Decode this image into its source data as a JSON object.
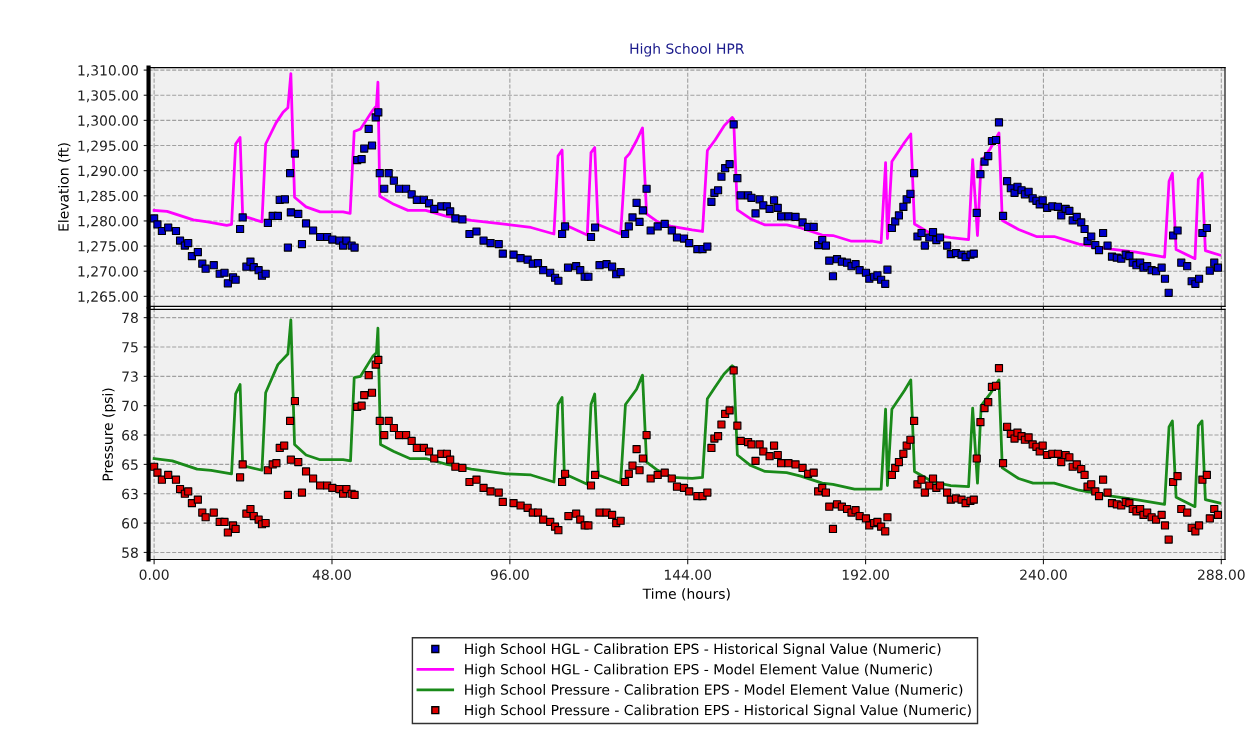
{
  "chart_data": [
    {
      "type": "scatter",
      "title": "High School HPR",
      "ylabel": "Elevation (ft)",
      "xlim": [
        -1.5,
        289
      ],
      "ylim": [
        1263,
        1310.5
      ],
      "tick_labels": "y",
      "grid": true,
      "legend": "bottom",
      "xticks": [
        0,
        48,
        96,
        144,
        192,
        240,
        288
      ],
      "yticks": [
        {
          "value": 1265,
          "label": "1,265.00"
        },
        {
          "value": 1270,
          "label": "1,270.00"
        },
        {
          "value": 1275,
          "label": "1,275.00"
        },
        {
          "value": 1280,
          "label": "1,280.00"
        },
        {
          "value": 1285,
          "label": "1,285.00"
        },
        {
          "value": 1290,
          "label": "1,290.00"
        },
        {
          "value": 1295,
          "label": "1,295.00"
        },
        {
          "value": 1300,
          "label": "1,300.00"
        },
        {
          "value": 1305,
          "label": "1,305.00"
        },
        {
          "value": 1310,
          "label": "1,310.00"
        }
      ],
      "series": [
        {
          "marker": "square",
          "name": "High School HGL - Calibration EPS - Historical Signal Value (Numeric)",
          "color": "#0000cc",
          "x": [
            0,
            0.9,
            2.1,
            3.8,
            5.9,
            7.0,
            8.3,
            9.2,
            10.2,
            11.8,
            13.0,
            13.9,
            16.1,
            17.7,
            19.0,
            19.9,
            21.3,
            22.0,
            23.2,
            23.9,
            24.9,
            26.0,
            26.9,
            28.2,
            29.1,
            30.1,
            30.7,
            32.0,
            33.4,
            33.9,
            35.3,
            36.1,
            36.7,
            36.9,
            38.0,
            38.9,
            39.9,
            41.0,
            42.9,
            44.8,
            46.7,
            48.1,
            50.0,
            51.0,
            51.9,
            53.3,
            54.1,
            54.8,
            56.0,
            56.7,
            57.9,
            58.8,
            59.8,
            60.5,
            60.9,
            62.1,
            63.3,
            64.7,
            66.1,
            68.0,
            69.5,
            70.9,
            72.8,
            74.2,
            75.6,
            77.5,
            79.0,
            79.9,
            81.3,
            83.2,
            85.1,
            87.0,
            88.9,
            90.8,
            93.0,
            94.1,
            97.0,
            98.9,
            100.8,
            102.2,
            103.6,
            105.0,
            106.9,
            108.2,
            109.1,
            110.1,
            110.9,
            111.7,
            113.9,
            115.0,
            116.2,
            117.2,
            117.9,
            119.0,
            120.2,
            122.1,
            123.6,
            124.7,
            125.9,
            127.1,
            128.1,
            129.1,
            130.2,
            131.0,
            131.9,
            132.9,
            134.0,
            135.9,
            137.8,
            139.7,
            141.1,
            143.0,
            144.4,
            146.6,
            148.0,
            149.3,
            150.4,
            151.2,
            152.2,
            153.1,
            154.1,
            155.3,
            156.4,
            157.4,
            158.3,
            160.3,
            161.2,
            162.3,
            163.4,
            164.4,
            166.1,
            167.3,
            168.3,
            169.2,
            171.2,
            173.1,
            175.0,
            176.5,
            178.0,
            179.2,
            180.3,
            181.3,
            182.2,
            183.2,
            184.3,
            185.6,
            187.0,
            188.2,
            189.3,
            190.4,
            192.1,
            193.0,
            194.3,
            195.2,
            196.2,
            197.3,
            197.9,
            199.1,
            200.0,
            201.0,
            202.2,
            203.1,
            204.1,
            205.1,
            206.0,
            207.1,
            208.0,
            209.2,
            210.2,
            211.1,
            212.1,
            214.0,
            215.0,
            216.4,
            217.9,
            219.0,
            220.3,
            221.2,
            222.0,
            223.0,
            224.1,
            225.1,
            226.1,
            227.2,
            228.0,
            229.1,
            230.2,
            231.2,
            232.2,
            233.0,
            234.1,
            235.0,
            236.0,
            237.1,
            238.1,
            239.0,
            239.8,
            241.0,
            242.4,
            243.9,
            244.8,
            246.0,
            247.0,
            247.9,
            249.0,
            250.2,
            251.1,
            251.9,
            252.9,
            254.0,
            255.0,
            256.1,
            257.3,
            258.5,
            259.8,
            261.0,
            262.2,
            263.2,
            264.1,
            265.1,
            266.1,
            267.0,
            268.0,
            269.2,
            270.4,
            271.9,
            272.8,
            273.8,
            275.0,
            276.2,
            277.2,
            278.8,
            280.0,
            281.0,
            282.0,
            282.9,
            284.1,
            284.9,
            286.1,
            287.1
          ],
          "values": [
            1280.5,
            1279.3,
            1278.0,
            1278.7,
            1278.0,
            1276.1,
            1275.1,
            1275.6,
            1273.0,
            1273.8,
            1271.5,
            1270.5,
            1271.2,
            1269.5,
            1269.7,
            1267.6,
            1268.8,
            1268.3,
            1278.4,
            1280.7,
            1270.9,
            1271.9,
            1270.8,
            1270.2,
            1269.1,
            1269.5,
            1279.6,
            1281.0,
            1281.0,
            1284.2,
            1284.3,
            1274.7,
            1289.5,
            1281.7,
            1293.4,
            1281.4,
            1275.4,
            1279.5,
            1278.1,
            1276.8,
            1276.8,
            1276.3,
            1276.1,
            1275.1,
            1276.1,
            1275.1,
            1274.7,
            1292.1,
            1292.3,
            1294.4,
            1298.3,
            1295.0,
            1300.6,
            1301.6,
            1289.5,
            1286.4,
            1289.5,
            1288.0,
            1286.4,
            1286.4,
            1285.3,
            1284.2,
            1284.2,
            1283.5,
            1282.4,
            1282.9,
            1282.9,
            1281.9,
            1280.5,
            1280.3,
            1277.4,
            1277.9,
            1276.1,
            1275.6,
            1275.4,
            1273.5,
            1273.3,
            1272.6,
            1272.3,
            1271.5,
            1271.6,
            1270.2,
            1269.7,
            1268.7,
            1268.1,
            1277.4,
            1278.9,
            1270.7,
            1271.0,
            1270.2,
            1268.9,
            1268.9,
            1276.8,
            1278.7,
            1271.2,
            1271.4,
            1270.9,
            1269.4,
            1269.8,
            1277.4,
            1278.9,
            1280.7,
            1283.6,
            1279.8,
            1282.1,
            1286.4,
            1278.1,
            1278.9,
            1279.4,
            1278.1,
            1276.7,
            1276.5,
            1275.6,
            1274.4,
            1274.4,
            1274.9,
            1283.8,
            1285.6,
            1286.1,
            1288.8,
            1290.5,
            1291.3,
            1299.2,
            1288.5,
            1285.1,
            1285.1,
            1284.6,
            1281.5,
            1284.3,
            1283.1,
            1282.4,
            1284.1,
            1282.6,
            1280.9,
            1280.9,
            1280.8,
            1279.7,
            1278.8,
            1278.8,
            1275.2,
            1276.2,
            1275.1,
            1272.1,
            1269.0,
            1272.4,
            1271.9,
            1271.7,
            1271.0,
            1271.4,
            1270.2,
            1269.7,
            1268.5,
            1268.9,
            1269.2,
            1268.3,
            1267.5,
            1270.3,
            1278.6,
            1279.9,
            1281.1,
            1282.8,
            1284.3,
            1285.4,
            1289.5,
            1276.9,
            1277.6,
            1275.1,
            1276.7,
            1277.8,
            1276.2,
            1276.7,
            1275.1,
            1273.4,
            1273.6,
            1273.3,
            1272.8,
            1273.3,
            1273.5,
            1281.6,
            1289.3,
            1291.8,
            1292.9,
            1295.9,
            1296.1,
            1299.6,
            1281.0,
            1287.9,
            1286.5,
            1285.6,
            1286.8,
            1286.1,
            1285.3,
            1285.8,
            1284.5,
            1284.0,
            1283.3,
            1284.1,
            1282.6,
            1282.9,
            1282.8,
            1281.1,
            1282.4,
            1282.0,
            1280.1,
            1280.8,
            1279.7,
            1278.4,
            1276.0,
            1276.9,
            1275.2,
            1274.2,
            1277.6,
            1275.1,
            1272.9,
            1272.7,
            1272.5,
            1273.3,
            1273.0,
            1271.7,
            1271.2,
            1271.7,
            1270.7,
            1271.0,
            1270.2,
            1270.0,
            1270.7,
            1268.5,
            1265.7,
            1277.1,
            1278.1,
            1271.7,
            1271.0,
            1268.0,
            1267.5,
            1268.5,
            1277.6,
            1278.6,
            1270.1,
            1271.7,
            1270.7
          ]
        },
        {
          "type": "line",
          "name": "High School HGL - Calibration EPS - Model Element Value (Numeric)",
          "color": "#ff00ff",
          "x": [
            0,
            3.5,
            10.6,
            14.4,
            19.6,
            20.9,
            22.0,
            23.2,
            23.9,
            29.1,
            30.1,
            32.9,
            34.8,
            36.1,
            36.9,
            37.9,
            41.0,
            44.8,
            51.0,
            52.9,
            54.0,
            55.7,
            59.0,
            60.0,
            60.4,
            60.9,
            64.7,
            68.5,
            73.3,
            79.0,
            85.6,
            95.1,
            101.7,
            107.9,
            109.0,
            110.1,
            110.7,
            116.9,
            117.9,
            118.9,
            119.8,
            125.9,
            127.2,
            128.3,
            130.2,
            131.8,
            132.9,
            135.9,
            139.7,
            145.2,
            148.0,
            149.3,
            151.4,
            153.8,
            156.0,
            156.4,
            157.4,
            161.0,
            164.9,
            170.7,
            174.5,
            180.3,
            183.2,
            188.0,
            193.8,
            196.2,
            197.4,
            197.9,
            199.1,
            202.5,
            204.2,
            205.2,
            210.2,
            215.0,
            219.8,
            220.9,
            222.2,
            223.2,
            225.6,
            228.0,
            228.9,
            233.3,
            238.1,
            242.9,
            249.6,
            258.3,
            265.0,
            272.7,
            273.9,
            274.8,
            275.8,
            280.9,
            281.8,
            282.8,
            283.7,
            287.6
          ],
          "values": [
            1282.1,
            1281.9,
            1280.2,
            1279.8,
            1279.1,
            1279.3,
            1295.3,
            1296.6,
            1281.0,
            1279.8,
            1295.3,
            1299.5,
            1301.6,
            1302.5,
            1309.3,
            1284.7,
            1282.8,
            1281.8,
            1281.8,
            1281.5,
            1297.8,
            1298.3,
            1302.0,
            1302.9,
            1307.6,
            1284.9,
            1283.3,
            1282.1,
            1282.1,
            1280.9,
            1280.1,
            1279.3,
            1278.7,
            1277.4,
            1292.9,
            1294.1,
            1279.3,
            1277.2,
            1293.6,
            1294.6,
            1279.3,
            1277.4,
            1292.5,
            1293.4,
            1296.0,
            1298.5,
            1281.4,
            1279.8,
            1278.9,
            1278.2,
            1277.9,
            1294.0,
            1296.1,
            1298.9,
            1300.6,
            1300.2,
            1282.2,
            1280.4,
            1279.2,
            1279.2,
            1278.6,
            1277.2,
            1277.1,
            1276.0,
            1276.0,
            1275.7,
            1291.6,
            1276.5,
            1291.8,
            1295.6,
            1297.3,
            1279.4,
            1277.2,
            1276.7,
            1276.3,
            1292.2,
            1277.1,
            1291.8,
            1294.3,
            1297.5,
            1280.1,
            1278.3,
            1276.9,
            1276.9,
            1275.4,
            1274.4,
            1273.8,
            1272.8,
            1287.9,
            1289.5,
            1274.3,
            1272.5,
            1288.3,
            1289.5,
            1274.1,
            1273.2
          ]
        }
      ]
    },
    {
      "type": "line",
      "xlabel": "Time (hours)",
      "ylabel": "Pressure (psi)",
      "xlim": [
        -1.5,
        289
      ],
      "ylim": [
        56.9,
        78.2
      ],
      "grid": true,
      "legend": "bottom",
      "xticks": [
        {
          "value": 0,
          "label": "0.00"
        },
        {
          "value": 48,
          "label": "48.00"
        },
        {
          "value": 96,
          "label": "96.00"
        },
        {
          "value": 144,
          "label": "144.00"
        },
        {
          "value": 192,
          "label": "192.00"
        },
        {
          "value": 240,
          "label": "240.00"
        },
        {
          "value": 288,
          "label": "288.00"
        }
      ],
      "yticks": [
        {
          "value": 57.5,
          "label": "58"
        },
        60,
        {
          "value": 62.5,
          "label": "63"
        },
        65,
        {
          "value": 67.5,
          "label": "68"
        },
        70,
        {
          "value": 72.5,
          "label": "73"
        },
        75,
        {
          "value": 77.5,
          "label": "78"
        }
      ],
      "series": [
        {
          "name": "High School Pressure - Calibration EPS - Model Element Value (Numeric)",
          "color": "#1a8a1a",
          "x": [
            0,
            4.9,
            11.6,
            15.4,
            20.9,
            22.0,
            23.2,
            23.9,
            29.1,
            30.1,
            33.4,
            36.1,
            36.9,
            37.9,
            41.0,
            44.8,
            51.0,
            53.0,
            54.0,
            55.7,
            59.0,
            60.0,
            60.4,
            61.1,
            64.7,
            69.0,
            73.3,
            79.0,
            85.6,
            95.1,
            101.7,
            107.9,
            109.0,
            110.1,
            110.7,
            116.9,
            117.9,
            118.9,
            119.9,
            125.9,
            127.2,
            130.2,
            131.8,
            132.9,
            135.9,
            139.7,
            145.2,
            148.0,
            149.3,
            151.4,
            153.8,
            156.0,
            156.4,
            157.4,
            161.0,
            164.9,
            170.7,
            174.5,
            180.3,
            183.2,
            189.0,
            193.8,
            196.2,
            197.4,
            197.9,
            199.1,
            202.5,
            204.2,
            205.2,
            210.2,
            215.0,
            219.8,
            220.9,
            222.2,
            223.2,
            225.6,
            228.0,
            228.9,
            233.3,
            237.2,
            242.9,
            249.6,
            258.3,
            265.0,
            272.7,
            273.9,
            274.8,
            275.8,
            280.9,
            281.8,
            282.8,
            283.7,
            287.6
          ],
          "values": [
            65.5,
            65.3,
            64.6,
            64.5,
            64.2,
            71.0,
            71.8,
            64.9,
            64.5,
            71.1,
            73.5,
            74.4,
            77.3,
            66.7,
            65.8,
            65.4,
            65.4,
            65.3,
            72.4,
            72.5,
            74.2,
            74.5,
            76.6,
            66.7,
            66.1,
            65.5,
            65.5,
            65.0,
            64.6,
            64.2,
            64.1,
            63.5,
            70.1,
            70.7,
            64.2,
            63.3,
            70.1,
            71.0,
            64.1,
            63.4,
            70.1,
            71.4,
            72.6,
            65.2,
            64.5,
            63.9,
            63.8,
            63.9,
            70.6,
            71.6,
            72.7,
            73.4,
            73.3,
            65.8,
            64.9,
            64.4,
            64.3,
            64.0,
            63.4,
            63.3,
            62.9,
            62.9,
            62.9,
            69.7,
            63.2,
            69.7,
            71.3,
            72.2,
            64.4,
            63.5,
            63.2,
            63.1,
            69.8,
            63.4,
            70.0,
            71.0,
            72.2,
            64.7,
            63.8,
            63.4,
            63.4,
            62.8,
            62.3,
            62.0,
            61.6,
            68.2,
            68.7,
            62.2,
            61.4,
            68.3,
            68.7,
            62.0,
            61.7
          ]
        },
        {
          "type": "scatter",
          "marker": "square",
          "name": "High School Pressure - Calibration EPS - Historical Signal Value (Numeric)",
          "color": "#dd0000",
          "x": [
            0,
            0.9,
            2.1,
            3.8,
            5.9,
            7.0,
            8.3,
            9.2,
            10.2,
            11.8,
            13.0,
            13.9,
            16.1,
            17.7,
            19.0,
            19.9,
            21.3,
            22.0,
            23.2,
            23.9,
            24.9,
            26.0,
            26.9,
            28.2,
            29.1,
            30.1,
            30.7,
            32.0,
            33.0,
            33.9,
            35.1,
            36.1,
            36.7,
            36.9,
            38.0,
            38.9,
            39.9,
            41.0,
            42.9,
            44.8,
            46.7,
            48.1,
            50.0,
            51.0,
            51.9,
            53.3,
            54.1,
            54.8,
            56.0,
            56.7,
            57.9,
            58.8,
            59.8,
            60.5,
            60.9,
            62.1,
            63.3,
            64.7,
            66.1,
            68.0,
            69.5,
            70.9,
            72.8,
            74.2,
            75.6,
            77.5,
            79.0,
            79.9,
            81.3,
            83.2,
            85.1,
            87.0,
            88.9,
            90.8,
            93.0,
            94.1,
            97.0,
            98.9,
            100.8,
            102.2,
            103.6,
            105.0,
            106.9,
            108.2,
            109.1,
            110.1,
            110.9,
            111.8,
            113.9,
            115.0,
            116.2,
            117.2,
            117.9,
            119.0,
            120.2,
            122.1,
            123.6,
            124.7,
            125.9,
            127.1,
            128.1,
            129.1,
            130.2,
            131.0,
            131.9,
            132.9,
            134.0,
            135.9,
            137.8,
            139.7,
            141.1,
            143.0,
            144.4,
            146.6,
            148.0,
            149.3,
            150.4,
            151.2,
            152.2,
            153.1,
            154.1,
            155.3,
            156.4,
            157.4,
            158.3,
            160.3,
            161.2,
            162.3,
            163.4,
            164.4,
            166.1,
            167.3,
            168.3,
            169.2,
            171.2,
            173.1,
            175.0,
            176.5,
            178.0,
            179.2,
            180.3,
            181.3,
            182.2,
            183.2,
            184.3,
            185.6,
            187.0,
            188.2,
            189.3,
            190.4,
            192.1,
            193.0,
            194.3,
            195.2,
            196.2,
            197.3,
            197.9,
            199.1,
            200.0,
            201.0,
            202.2,
            203.1,
            204.1,
            205.1,
            206.0,
            207.1,
            208.0,
            209.2,
            210.2,
            211.1,
            212.1,
            214.0,
            215.0,
            216.4,
            217.9,
            219.0,
            220.3,
            221.2,
            222.0,
            223.0,
            224.1,
            225.1,
            226.1,
            227.2,
            228.0,
            229.1,
            230.2,
            231.2,
            232.2,
            233.0,
            234.1,
            235.0,
            236.0,
            237.1,
            238.1,
            239.0,
            239.8,
            241.0,
            242.4,
            243.9,
            244.8,
            246.0,
            247.0,
            247.9,
            249.0,
            250.2,
            251.1,
            251.9,
            252.9,
            254.0,
            255.0,
            256.1,
            257.3,
            258.5,
            259.8,
            261.0,
            262.2,
            263.2,
            264.1,
            265.1,
            266.1,
            267.0,
            268.0,
            269.2,
            270.4,
            271.9,
            272.8,
            273.8,
            275.0,
            276.2,
            277.2,
            278.8,
            280.0,
            281.0,
            282.0,
            282.9,
            284.1,
            284.9,
            286.1,
            287.1
          ],
          "values": [
            64.8,
            64.3,
            63.7,
            64.1,
            63.7,
            62.9,
            62.5,
            62.7,
            61.7,
            62.0,
            60.9,
            60.5,
            60.9,
            60.1,
            60.1,
            59.2,
            59.8,
            59.5,
            63.9,
            65.0,
            60.8,
            61.2,
            60.6,
            60.3,
            59.9,
            60.0,
            64.5,
            65.0,
            65.1,
            66.4,
            66.6,
            62.4,
            68.7,
            65.4,
            70.4,
            65.2,
            62.6,
            64.4,
            63.8,
            63.2,
            63.2,
            63.0,
            62.9,
            62.5,
            62.9,
            62.5,
            62.4,
            69.9,
            70.0,
            70.9,
            72.6,
            71.1,
            73.5,
            73.9,
            68.7,
            67.5,
            68.7,
            68.1,
            67.5,
            67.5,
            67.0,
            66.4,
            66.4,
            66.1,
            65.5,
            65.9,
            65.9,
            65.4,
            64.8,
            64.7,
            63.5,
            63.7,
            63.0,
            62.7,
            62.6,
            61.8,
            61.7,
            61.5,
            61.3,
            60.9,
            60.9,
            60.3,
            60.1,
            59.7,
            59.4,
            63.5,
            64.2,
            60.6,
            60.8,
            60.3,
            59.8,
            59.8,
            63.2,
            64.1,
            60.9,
            60.9,
            60.7,
            60.0,
            60.2,
            63.5,
            64.2,
            64.9,
            66.3,
            64.5,
            65.5,
            67.5,
            63.8,
            64.1,
            64.3,
            63.8,
            63.1,
            63.0,
            62.7,
            62.3,
            62.3,
            62.6,
            66.4,
            67.2,
            67.4,
            68.4,
            69.3,
            69.6,
            73.0,
            68.3,
            67.0,
            66.9,
            66.7,
            65.3,
            66.7,
            66.1,
            65.7,
            66.6,
            65.8,
            65.1,
            65.1,
            65.0,
            64.7,
            64.2,
            64.3,
            62.7,
            63.0,
            62.6,
            61.4,
            59.5,
            61.6,
            61.4,
            61.2,
            60.9,
            61.1,
            60.6,
            60.4,
            59.8,
            60.0,
            60.1,
            59.7,
            59.3,
            60.5,
            64.1,
            64.7,
            65.2,
            65.9,
            66.6,
            67.1,
            68.7,
            63.3,
            63.7,
            62.6,
            63.2,
            63.8,
            63.0,
            63.2,
            62.6,
            62.0,
            62.1,
            62.0,
            61.7,
            61.9,
            62.0,
            65.5,
            68.6,
            69.8,
            70.3,
            71.6,
            71.7,
            73.2,
            65.1,
            68.2,
            67.6,
            67.2,
            67.7,
            67.4,
            67.1,
            67.3,
            66.7,
            66.5,
            66.1,
            66.6,
            65.8,
            65.9,
            65.9,
            65.2,
            65.8,
            65.6,
            64.8,
            65.0,
            64.6,
            64.1,
            63.1,
            63.3,
            62.7,
            62.3,
            63.7,
            62.6,
            61.7,
            61.6,
            61.5,
            61.8,
            61.7,
            61.2,
            61.0,
            61.2,
            60.7,
            60.9,
            60.5,
            60.3,
            60.7,
            59.8,
            58.6,
            63.5,
            64.0,
            61.2,
            60.9,
            59.6,
            59.3,
            59.8,
            63.7,
            64.1,
            60.4,
            61.2,
            60.7
          ]
        }
      ]
    }
  ]
}
